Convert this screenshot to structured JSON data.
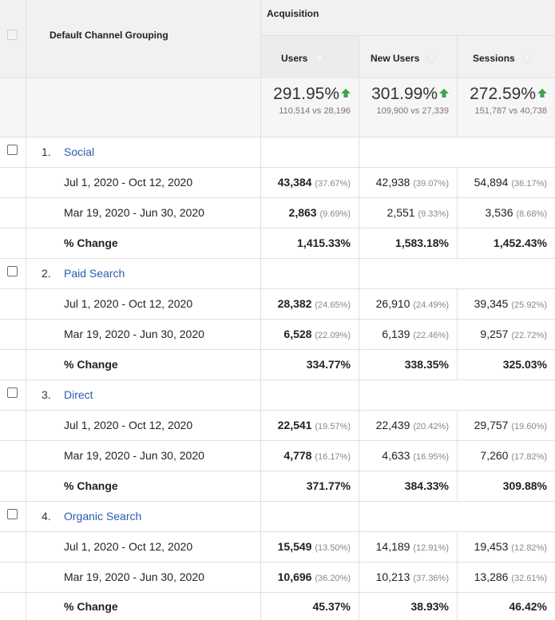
{
  "header": {
    "dimension_label": "Default Channel Grouping",
    "group_label": "Acquisition",
    "columns": [
      "Users",
      "New Users",
      "Sessions"
    ],
    "help_symbol": "?",
    "sort_icon": "arrow-down-icon"
  },
  "summary": {
    "users": {
      "pct": "291.95%",
      "sub": "110,514 vs 28,196"
    },
    "new_users": {
      "pct": "301.99%",
      "sub": "109,900 vs 27,339"
    },
    "sessions": {
      "pct": "272.59%",
      "sub": "151,787 vs 40,738"
    },
    "trend_icon": "up-arrow-icon",
    "trend_color": "#3fa34d"
  },
  "channels": [
    {
      "index": "1.",
      "name": "Social",
      "rows": [
        {
          "label": "Jul 1, 2020 - Oct 12, 2020",
          "users": "43,384",
          "users_share": "(37.67%)",
          "new_users": "42,938",
          "new_users_share": "(39.07%)",
          "sessions": "54,894",
          "sessions_share": "(36.17%)"
        },
        {
          "label": "Mar 19, 2020 - Jun 30, 2020",
          "users": "2,863",
          "users_share": "(9.69%)",
          "new_users": "2,551",
          "new_users_share": "(9.33%)",
          "sessions": "3,536",
          "sessions_share": "(8.68%)"
        }
      ],
      "change": {
        "label": "% Change",
        "users": "1,415.33%",
        "new_users": "1,583.18%",
        "sessions": "1,452.43%"
      }
    },
    {
      "index": "2.",
      "name": "Paid Search",
      "rows": [
        {
          "label": "Jul 1, 2020 - Oct 12, 2020",
          "users": "28,382",
          "users_share": "(24.65%)",
          "new_users": "26,910",
          "new_users_share": "(24.49%)",
          "sessions": "39,345",
          "sessions_share": "(25.92%)"
        },
        {
          "label": "Mar 19, 2020 - Jun 30, 2020",
          "users": "6,528",
          "users_share": "(22.09%)",
          "new_users": "6,139",
          "new_users_share": "(22.46%)",
          "sessions": "9,257",
          "sessions_share": "(22.72%)"
        }
      ],
      "change": {
        "label": "% Change",
        "users": "334.77%",
        "new_users": "338.35%",
        "sessions": "325.03%"
      }
    },
    {
      "index": "3.",
      "name": "Direct",
      "rows": [
        {
          "label": "Jul 1, 2020 - Oct 12, 2020",
          "users": "22,541",
          "users_share": "(19.57%)",
          "new_users": "22,439",
          "new_users_share": "(20.42%)",
          "sessions": "29,757",
          "sessions_share": "(19.60%)"
        },
        {
          "label": "Mar 19, 2020 - Jun 30, 2020",
          "users": "4,778",
          "users_share": "(16.17%)",
          "new_users": "4,633",
          "new_users_share": "(16.95%)",
          "sessions": "7,260",
          "sessions_share": "(17.82%)"
        }
      ],
      "change": {
        "label": "% Change",
        "users": "371.77%",
        "new_users": "384.33%",
        "sessions": "309.88%"
      }
    },
    {
      "index": "4.",
      "name": "Organic Search",
      "rows": [
        {
          "label": "Jul 1, 2020 - Oct 12, 2020",
          "users": "15,549",
          "users_share": "(13.50%)",
          "new_users": "14,189",
          "new_users_share": "(12.91%)",
          "sessions": "19,453",
          "sessions_share": "(12.82%)"
        },
        {
          "label": "Mar 19, 2020 - Jun 30, 2020",
          "users": "10,696",
          "users_share": "(36.20%)",
          "new_users": "10,213",
          "new_users_share": "(37.36%)",
          "sessions": "13,286",
          "sessions_share": "(32.61%)"
        }
      ],
      "change": {
        "label": "% Change",
        "users": "45.37%",
        "new_users": "38.93%",
        "sessions": "46.42%"
      }
    }
  ]
}
